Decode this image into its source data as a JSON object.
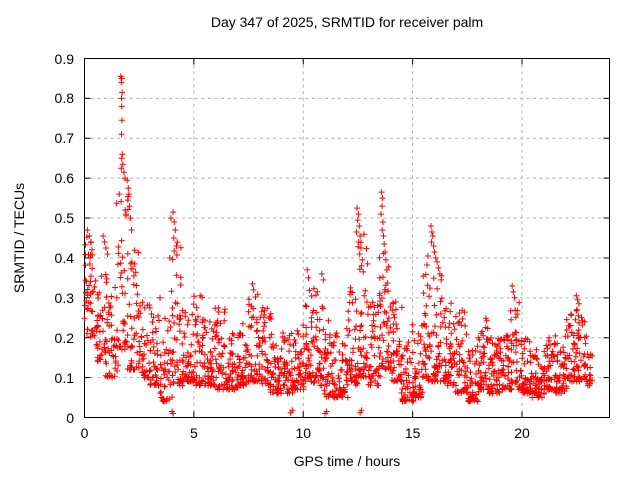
{
  "page": {
    "background": "#ffffff"
  },
  "chart_data": {
    "type": "scatter",
    "title": "Day 347 of 2025, SRMTID for receiver palm",
    "xlabel": "GPS time / hours",
    "ylabel": "SRMTID / TECUs",
    "xlim": [
      0,
      24
    ],
    "ylim": [
      0,
      0.9
    ],
    "xticks": [
      0,
      5,
      10,
      15,
      20
    ],
    "yticks": [
      0,
      0.1,
      0.2,
      0.3,
      0.4,
      0.5,
      0.6,
      0.7,
      0.8,
      0.9
    ],
    "grid": true,
    "legend": "none",
    "marker": "plus",
    "marker_size_px": 7,
    "colors": {
      "points": "#ff0000",
      "axis": "#000000",
      "grid": "#b0b0b0",
      "text": "#000000"
    },
    "seed": 11,
    "density_profile": {
      "description": "Dense band of 30-second SRMTID samples; each bin is [hour_start, hour_end, value_low, value_high, point_count, optional_skew_exponent]. Values in TECUs read from the plot.",
      "bins": [
        [
          0.0,
          0.5,
          0.2,
          0.46,
          46,
          1.3
        ],
        [
          0.5,
          1.0,
          0.14,
          0.36,
          42,
          1.5
        ],
        [
          1.0,
          1.5,
          0.1,
          0.33,
          40
        ],
        [
          1.5,
          2.0,
          0.17,
          0.58,
          40
        ],
        [
          2.0,
          2.5,
          0.12,
          0.44,
          42
        ],
        [
          2.5,
          3.0,
          0.1,
          0.3,
          42
        ],
        [
          3.0,
          3.5,
          0.08,
          0.31,
          42
        ],
        [
          3.5,
          4.0,
          0.04,
          0.25,
          42
        ],
        [
          4.0,
          4.5,
          0.08,
          0.44,
          44
        ],
        [
          4.5,
          5.0,
          0.09,
          0.27,
          44
        ],
        [
          5.0,
          5.5,
          0.08,
          0.31,
          46
        ],
        [
          5.5,
          6.0,
          0.08,
          0.26,
          46
        ],
        [
          6.0,
          6.5,
          0.07,
          0.28,
          46
        ],
        [
          6.5,
          7.0,
          0.07,
          0.22,
          46
        ],
        [
          7.0,
          7.5,
          0.08,
          0.24,
          46
        ],
        [
          7.5,
          8.0,
          0.09,
          0.31,
          46
        ],
        [
          8.0,
          8.5,
          0.08,
          0.28,
          46
        ],
        [
          8.5,
          9.0,
          0.06,
          0.21,
          46
        ],
        [
          9.0,
          9.5,
          0.06,
          0.22,
          46
        ],
        [
          9.5,
          10.0,
          0.07,
          0.24,
          46
        ],
        [
          10.0,
          10.5,
          0.09,
          0.34,
          46
        ],
        [
          10.5,
          11.0,
          0.08,
          0.32,
          46
        ],
        [
          11.0,
          11.5,
          0.05,
          0.25,
          44
        ],
        [
          11.5,
          12.0,
          0.05,
          0.21,
          44
        ],
        [
          12.0,
          12.5,
          0.08,
          0.34,
          44
        ],
        [
          12.5,
          13.0,
          0.1,
          0.46,
          46
        ],
        [
          13.0,
          13.5,
          0.08,
          0.3,
          46
        ],
        [
          13.5,
          14.0,
          0.12,
          0.42,
          44
        ],
        [
          14.0,
          14.5,
          0.09,
          0.3,
          46
        ],
        [
          14.5,
          15.0,
          0.04,
          0.19,
          46
        ],
        [
          15.0,
          15.5,
          0.05,
          0.24,
          46
        ],
        [
          15.5,
          16.0,
          0.09,
          0.4,
          46
        ],
        [
          16.0,
          16.5,
          0.09,
          0.36,
          46
        ],
        [
          16.5,
          17.0,
          0.08,
          0.29,
          46
        ],
        [
          17.0,
          17.5,
          0.06,
          0.27,
          46
        ],
        [
          17.5,
          18.0,
          0.04,
          0.17,
          46
        ],
        [
          18.0,
          18.5,
          0.07,
          0.25,
          46
        ],
        [
          18.5,
          19.0,
          0.06,
          0.2,
          46
        ],
        [
          19.0,
          19.5,
          0.07,
          0.22,
          46
        ],
        [
          19.5,
          20.0,
          0.07,
          0.29,
          46
        ],
        [
          20.0,
          20.5,
          0.06,
          0.2,
          46
        ],
        [
          20.5,
          21.0,
          0.05,
          0.17,
          46
        ],
        [
          21.0,
          21.5,
          0.07,
          0.21,
          46
        ],
        [
          21.5,
          22.0,
          0.06,
          0.19,
          46
        ],
        [
          22.0,
          22.5,
          0.09,
          0.27,
          44
        ],
        [
          22.5,
          23.0,
          0.09,
          0.28,
          44
        ],
        [
          23.0,
          23.2,
          0.08,
          0.16,
          14
        ]
      ]
    },
    "outliers": [
      [
        1.66,
        0.855
      ],
      [
        1.7,
        0.85
      ],
      [
        1.68,
        0.84
      ],
      [
        1.72,
        0.815
      ],
      [
        1.69,
        0.8
      ],
      [
        1.7,
        0.78
      ],
      [
        1.71,
        0.745
      ],
      [
        1.69,
        0.71
      ],
      [
        1.73,
        0.66
      ],
      [
        1.7,
        0.65
      ],
      [
        1.75,
        0.635
      ],
      [
        1.68,
        0.625
      ],
      [
        1.8,
        0.615
      ],
      [
        1.85,
        0.6
      ],
      [
        1.95,
        0.595
      ],
      [
        2.0,
        0.575
      ],
      [
        2.03,
        0.56
      ],
      [
        1.98,
        0.545
      ],
      [
        2.06,
        0.53
      ],
      [
        1.9,
        0.51
      ],
      [
        2.1,
        0.5
      ],
      [
        2.15,
        0.47
      ],
      [
        0.13,
        0.47
      ],
      [
        0.22,
        0.455
      ],
      [
        0.3,
        0.44
      ],
      [
        0.85,
        0.455
      ],
      [
        0.92,
        0.44
      ],
      [
        0.98,
        0.425
      ],
      [
        1.05,
        0.41
      ],
      [
        3.95,
        0.5
      ],
      [
        4.05,
        0.515
      ],
      [
        4.1,
        0.49
      ],
      [
        4.15,
        0.47
      ],
      [
        4.08,
        0.45
      ],
      [
        4.2,
        0.43
      ],
      [
        3.9,
        0.4
      ],
      [
        4.0,
        0.015
      ],
      [
        4.05,
        0.01
      ],
      [
        9.42,
        0.012
      ],
      [
        9.5,
        0.018
      ],
      [
        11.0,
        0.01
      ],
      [
        11.07,
        0.015
      ],
      [
        12.6,
        0.012
      ],
      [
        12.66,
        0.018
      ],
      [
        7.68,
        0.335
      ],
      [
        7.73,
        0.32
      ],
      [
        10.18,
        0.37
      ],
      [
        10.24,
        0.35
      ],
      [
        10.85,
        0.36
      ],
      [
        10.92,
        0.345
      ],
      [
        12.46,
        0.525
      ],
      [
        12.52,
        0.51
      ],
      [
        12.49,
        0.495
      ],
      [
        12.56,
        0.48
      ],
      [
        12.44,
        0.465
      ],
      [
        12.6,
        0.455
      ],
      [
        12.53,
        0.44
      ],
      [
        12.64,
        0.425
      ],
      [
        12.58,
        0.41
      ],
      [
        12.7,
        0.395
      ],
      [
        12.66,
        0.38
      ],
      [
        12.74,
        0.365
      ],
      [
        13.58,
        0.565
      ],
      [
        13.62,
        0.55
      ],
      [
        13.6,
        0.53
      ],
      [
        13.56,
        0.51
      ],
      [
        13.64,
        0.49
      ],
      [
        13.61,
        0.47
      ],
      [
        13.67,
        0.455
      ],
      [
        13.7,
        0.435
      ],
      [
        13.74,
        0.415
      ],
      [
        13.78,
        0.395
      ],
      [
        13.82,
        0.37
      ],
      [
        13.5,
        0.35
      ],
      [
        15.7,
        0.405
      ],
      [
        15.84,
        0.48
      ],
      [
        15.88,
        0.465
      ],
      [
        15.92,
        0.455
      ],
      [
        15.86,
        0.44
      ],
      [
        15.96,
        0.43
      ],
      [
        16.0,
        0.415
      ],
      [
        16.06,
        0.4
      ],
      [
        16.12,
        0.39
      ],
      [
        16.18,
        0.375
      ],
      [
        16.24,
        0.36
      ],
      [
        16.3,
        0.345
      ],
      [
        19.55,
        0.33
      ],
      [
        19.6,
        0.315
      ],
      [
        19.66,
        0.3
      ],
      [
        22.48,
        0.305
      ],
      [
        22.54,
        0.295
      ],
      [
        22.6,
        0.285
      ],
      [
        22.52,
        0.27
      ],
      [
        22.58,
        0.255
      ],
      [
        22.44,
        0.245
      ]
    ]
  }
}
